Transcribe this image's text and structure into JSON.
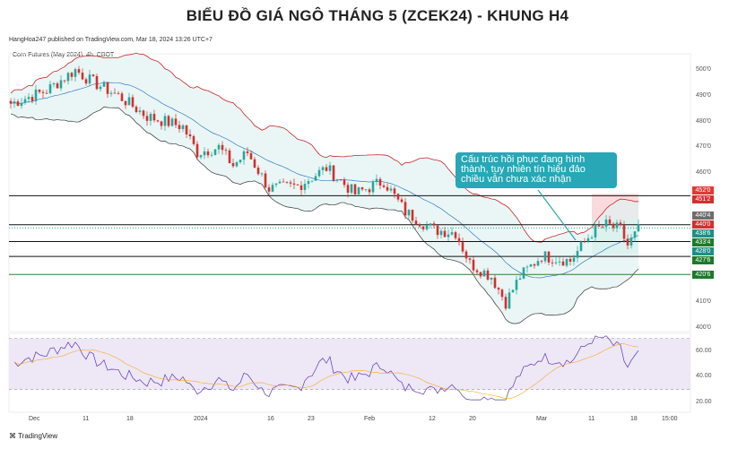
{
  "title": "BIỂU ĐỒ GIÁ NGÔ THÁNG 5 (ZCEK24) - KHUNG H4",
  "publisher": "HangHoa247 published on TradingView.com, Mar 18, 2024 13:26 UTC+7",
  "symbol": "Corn Futures (May 2024), 4h, CBOT",
  "callout": "Cấu trúc hồi phục đang hình thành, tuy nhiên tín hiệu đảo chiều vẫn chưa xác nhận",
  "brand": "TradingView",
  "colors": {
    "up": "#26a69a",
    "down": "#d32f2f",
    "band": "#c62828",
    "callout": "#28a7b6"
  },
  "chart_data": {
    "type": "candlestick",
    "title": "Corn Futures (May 2024), 4h, CBOT",
    "price_ticks": [
      "500'0",
      "490'0",
      "480'0",
      "470'0",
      "460'0",
      "410'0",
      "400'0"
    ],
    "price_tick_values": [
      500,
      490,
      480,
      470,
      460,
      410,
      400
    ],
    "x_ticks": [
      "Dec",
      "11",
      "18",
      "2024",
      "16",
      "23",
      "Feb",
      "12",
      "20",
      "Mar",
      "11",
      "18",
      "15:00"
    ],
    "close_waypoints": {
      "bar": [
        0,
        10,
        18,
        22,
        30,
        38,
        48,
        52,
        58,
        62,
        66,
        72,
        80,
        88,
        96,
        104,
        110,
        118,
        124,
        128,
        134,
        138,
        142,
        148,
        156,
        162,
        166,
        170,
        172,
        175
      ],
      "price": [
        487,
        492,
        500,
        496,
        490,
        482,
        478,
        468,
        470,
        463,
        468,
        454,
        455,
        462,
        452,
        457,
        445,
        438,
        437,
        425,
        420,
        410,
        420,
        428,
        426,
        437,
        440,
        438,
        432,
        438
      ]
    },
    "levels": [
      {
        "label": "452'0",
        "value": 452,
        "color": "#e53935",
        "line": false
      },
      {
        "label": "451'2",
        "value": 451.25,
        "color": "#d32f2f",
        "line": true
      },
      {
        "label": "440'4",
        "value": 440.5,
        "color": "#6d6d6d",
        "line": false
      },
      {
        "label": "440'0",
        "value": 440,
        "color": "#d32f2f",
        "line": true
      },
      {
        "label": "438'6",
        "value": 438.75,
        "color": "#1e8f84",
        "line": false
      },
      {
        "label": "433'4",
        "value": 433.5,
        "color": "#1b7a2a",
        "line": true
      },
      {
        "label": "428'0",
        "value": 428,
        "color": "#1e8f84",
        "line": false
      },
      {
        "label": "427'6",
        "value": 427.75,
        "color": "#1b7a2a",
        "line": true
      },
      {
        "label": "420'6",
        "value": 420.75,
        "color": "#1b7a2a",
        "line": true
      }
    ],
    "rsi_ticks": [
      "60.00",
      "40.00",
      "20.00"
    ],
    "rsi_tick_values": [
      60,
      40,
      20
    ],
    "rsi_band": [
      30,
      70
    ]
  }
}
